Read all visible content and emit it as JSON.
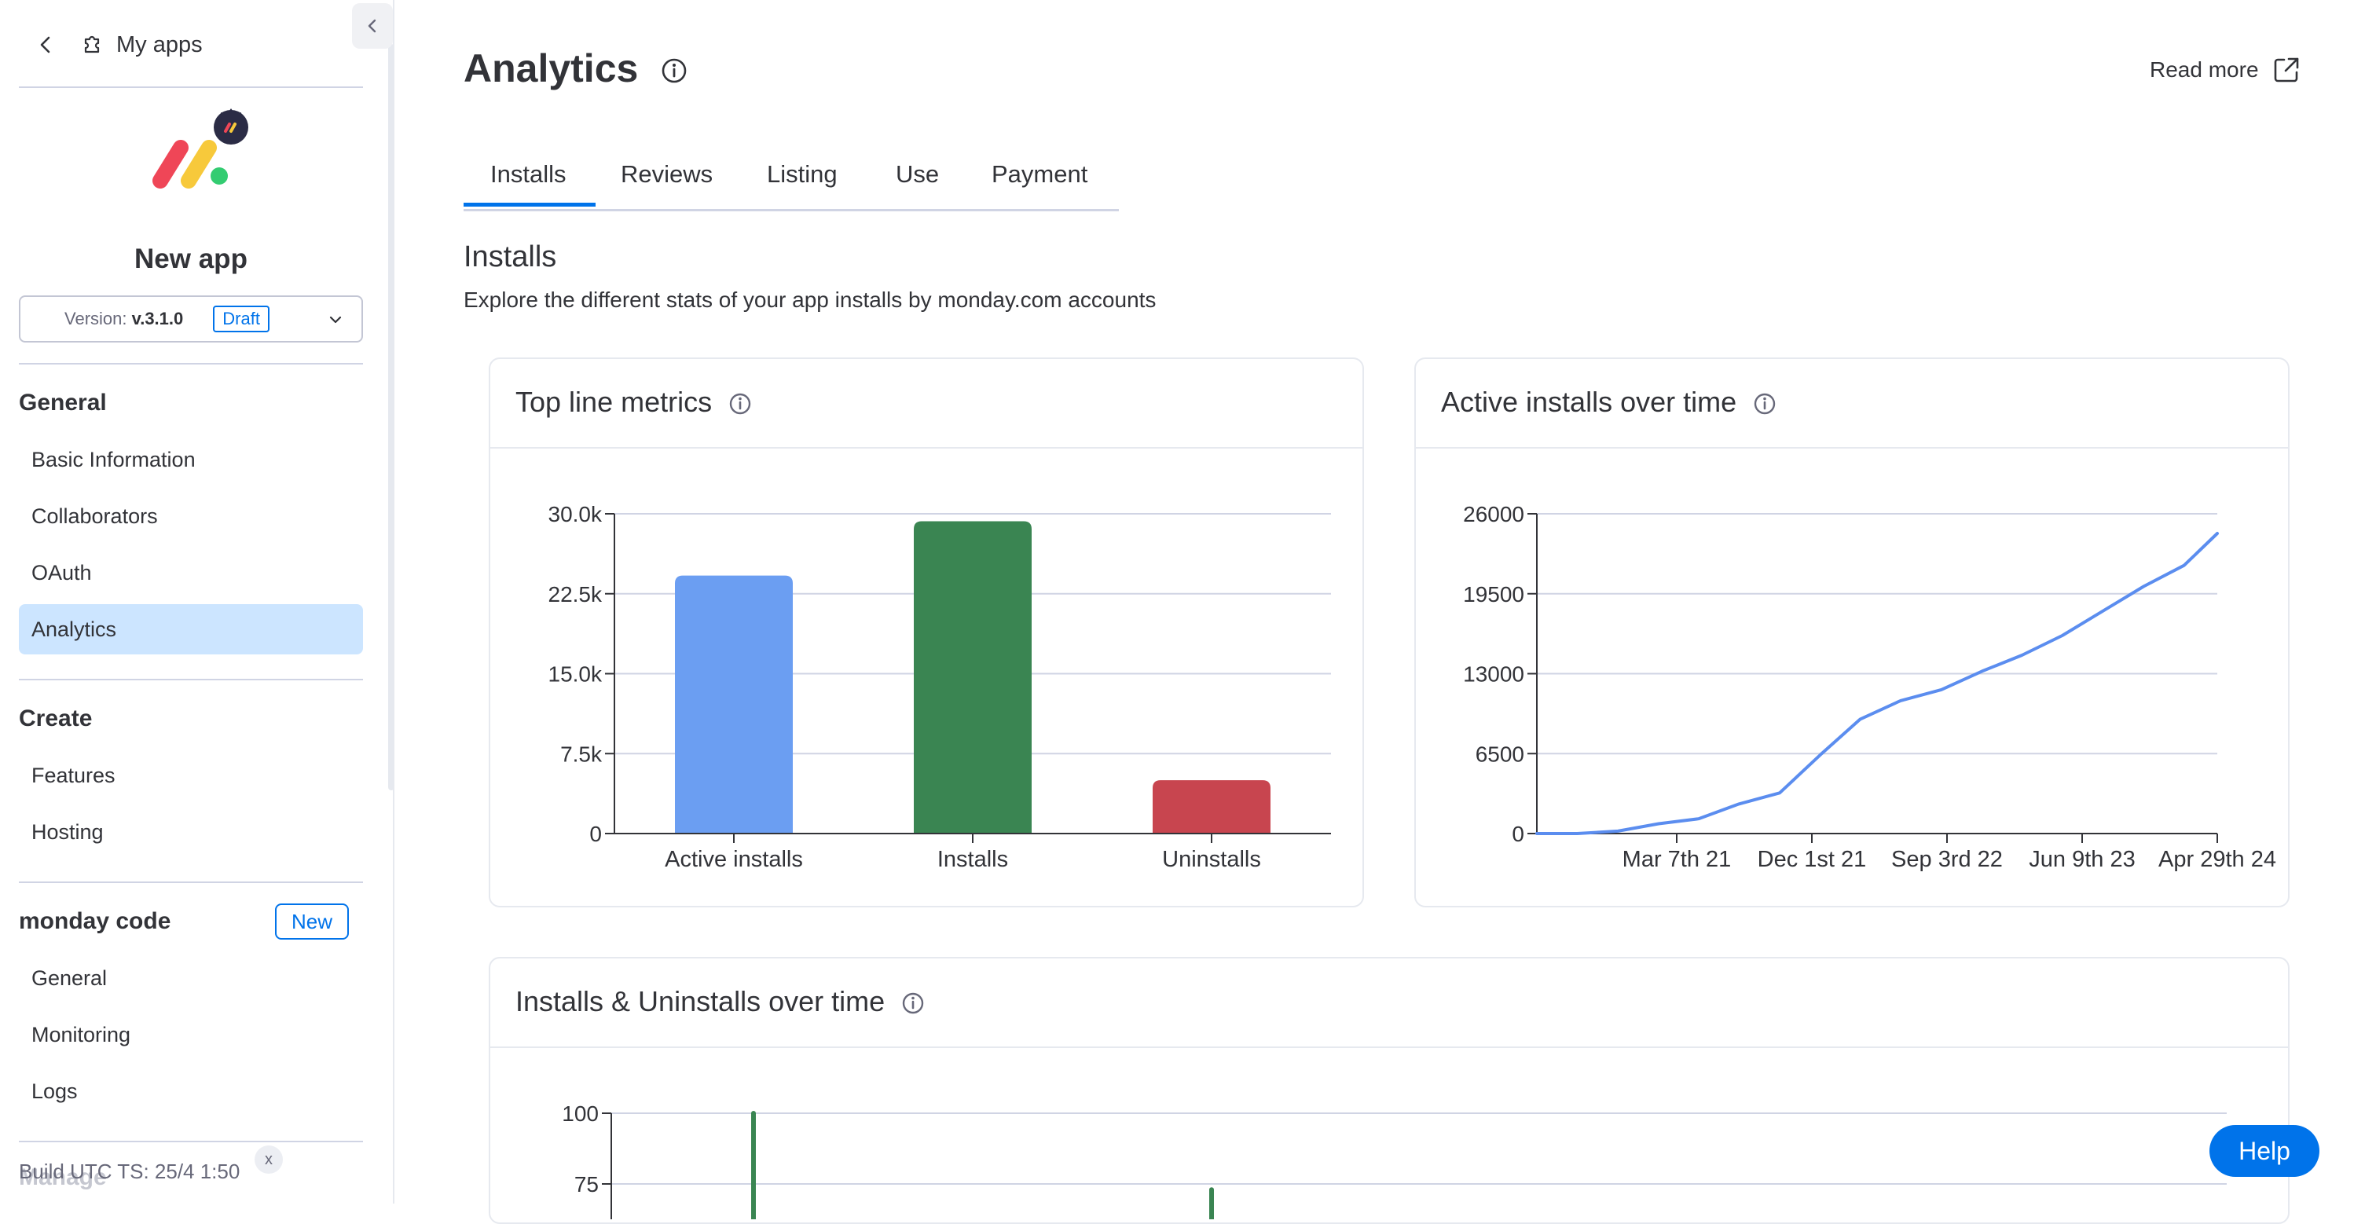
{
  "sidebar": {
    "back_label": "My apps",
    "app_name": "New app",
    "version_prefix": "Version: ",
    "version_value": "v.3.1.0",
    "version_status": "Draft",
    "sections": {
      "general_title": "General",
      "general_items": [
        "Basic Information",
        "Collaborators",
        "OAuth",
        "Analytics"
      ],
      "create_title": "Create",
      "create_items": [
        "Features",
        "Hosting"
      ],
      "code_title": "monday code",
      "code_badge": "New",
      "code_items": [
        "General",
        "Monitoring",
        "Logs"
      ],
      "manage_title": "Manage"
    },
    "active_item": "Analytics",
    "build_ts": "Build UTC TS: 25/4 1:50",
    "build_close": "x"
  },
  "header": {
    "title": "Analytics",
    "read_more": "Read more"
  },
  "tabs": [
    "Installs",
    "Reviews",
    "Listing",
    "Use",
    "Payment"
  ],
  "active_tab": "Installs",
  "section": {
    "title": "Installs",
    "description": "Explore the different stats of your app installs by monday.com accounts"
  },
  "cards": {
    "top_line": "Top line metrics",
    "active_over_time": "Active installs over time",
    "installs_uninstalls": "Installs & Uninstalls over time"
  },
  "help_label": "Help",
  "colors": {
    "accent": "#0073ea",
    "active_installs": "#6b9ef2",
    "installs": "#3a8552",
    "uninstalls": "#c8454f",
    "line": "#5b8def"
  },
  "chart_data": [
    {
      "type": "bar",
      "categories": [
        "Active installs",
        "Installs",
        "Uninstalls"
      ],
      "values": [
        24200,
        29300,
        5000
      ],
      "ylim": [
        0,
        30000
      ],
      "yticks": [
        "0",
        "7.5k",
        "15.0k",
        "22.5k",
        "30.0k"
      ],
      "ytick_values": [
        0,
        7500,
        15000,
        22500,
        30000
      ],
      "grid": true
    },
    {
      "type": "line",
      "x_ticks": [
        "Mar 7th 21",
        "Dec 1st 21",
        "Sep 3rd 22",
        "Jun 9th 23",
        "Apr 29th 24"
      ],
      "yticks": [
        "0",
        "6500",
        "13000",
        "19500",
        "26000"
      ],
      "ytick_values": [
        0,
        6500,
        13000,
        19500,
        26000
      ],
      "ylim": [
        0,
        26000
      ],
      "x": [
        "2020-04-01",
        "2020-07-01",
        "2020-10-01",
        "2021-01-01",
        "2021-04-01",
        "2021-07-01",
        "2021-10-01",
        "2022-01-01",
        "2022-04-01",
        "2022-07-01",
        "2022-10-01",
        "2023-01-01",
        "2023-04-01",
        "2023-07-01",
        "2023-10-01",
        "2024-01-01",
        "2024-04-01",
        "2024-06-15"
      ],
      "values": [
        0,
        0,
        200,
        800,
        1200,
        2400,
        3300,
        6400,
        9300,
        10800,
        11700,
        13200,
        14500,
        16100,
        18100,
        20100,
        21800,
        24400
      ],
      "grid": true
    },
    {
      "type": "bar",
      "yticks": [
        "75",
        "100"
      ],
      "ytick_values": [
        75,
        100
      ],
      "ylim": [
        0,
        100
      ],
      "visible_peaks": [
        100,
        73
      ],
      "grid": true
    }
  ]
}
